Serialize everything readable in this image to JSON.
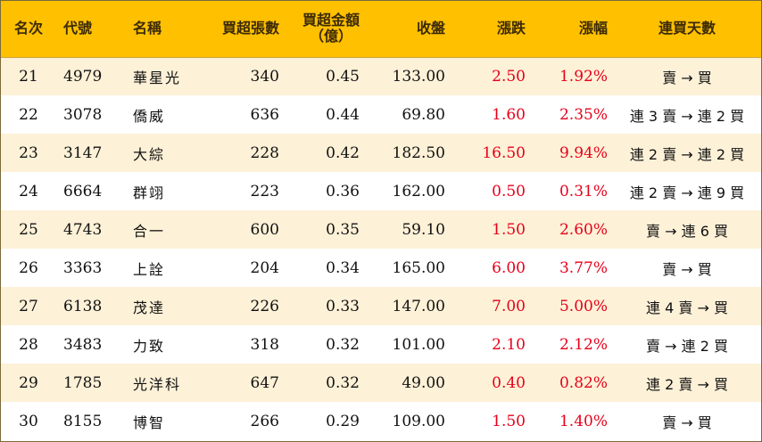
{
  "headers": {
    "rank": "名次",
    "code": "代號",
    "name": "名稱",
    "net_lots": "買超張數",
    "net_amount_line1": "買超金額",
    "net_amount_line2": "（億）",
    "close": "收盤",
    "change": "漲跌",
    "pct": "漲幅",
    "streak": "連買天數"
  },
  "rows": [
    {
      "rank": "21",
      "code": "4979",
      "name": "華星光",
      "net_lots": "340",
      "net_amount": "0.45",
      "close": "133.00",
      "change": "2.50",
      "pct": "1.92%",
      "streak": "賣 → 買"
    },
    {
      "rank": "22",
      "code": "3078",
      "name": "僑威",
      "net_lots": "636",
      "net_amount": "0.44",
      "close": "69.80",
      "change": "1.60",
      "pct": "2.35%",
      "streak": "連 3 賣 → 連 2 買"
    },
    {
      "rank": "23",
      "code": "3147",
      "name": "大綜",
      "net_lots": "228",
      "net_amount": "0.42",
      "close": "182.50",
      "change": "16.50",
      "pct": "9.94%",
      "streak": "連 2 賣 → 連 2 買"
    },
    {
      "rank": "24",
      "code": "6664",
      "name": "群翊",
      "net_lots": "223",
      "net_amount": "0.36",
      "close": "162.00",
      "change": "0.50",
      "pct": "0.31%",
      "streak": "連 2 賣 → 連 9 買"
    },
    {
      "rank": "25",
      "code": "4743",
      "name": "合一",
      "net_lots": "600",
      "net_amount": "0.35",
      "close": "59.10",
      "change": "1.50",
      "pct": "2.60%",
      "streak": "賣 → 連 6 買"
    },
    {
      "rank": "26",
      "code": "3363",
      "name": "上詮",
      "net_lots": "204",
      "net_amount": "0.34",
      "close": "165.00",
      "change": "6.00",
      "pct": "3.77%",
      "streak": "賣 → 買"
    },
    {
      "rank": "27",
      "code": "6138",
      "name": "茂達",
      "net_lots": "226",
      "net_amount": "0.33",
      "close": "147.00",
      "change": "7.00",
      "pct": "5.00%",
      "streak": "連 4 賣 → 買"
    },
    {
      "rank": "28",
      "code": "3483",
      "name": "力致",
      "net_lots": "318",
      "net_amount": "0.32",
      "close": "101.00",
      "change": "2.10",
      "pct": "2.12%",
      "streak": "賣 → 連 2 買"
    },
    {
      "rank": "29",
      "code": "1785",
      "name": "光洋科",
      "net_lots": "647",
      "net_amount": "0.32",
      "close": "49.00",
      "change": "0.40",
      "pct": "0.82%",
      "streak": "連 2 賣 → 買"
    },
    {
      "rank": "30",
      "code": "8155",
      "name": "博智",
      "net_lots": "266",
      "net_amount": "0.29",
      "close": "109.00",
      "change": "1.50",
      "pct": "1.40%",
      "streak": "賣 → 買"
    }
  ],
  "colors": {
    "header_bg": "#ffc000",
    "row_alt_bg": "#fdf1d7",
    "up_red": "#e6001a"
  }
}
